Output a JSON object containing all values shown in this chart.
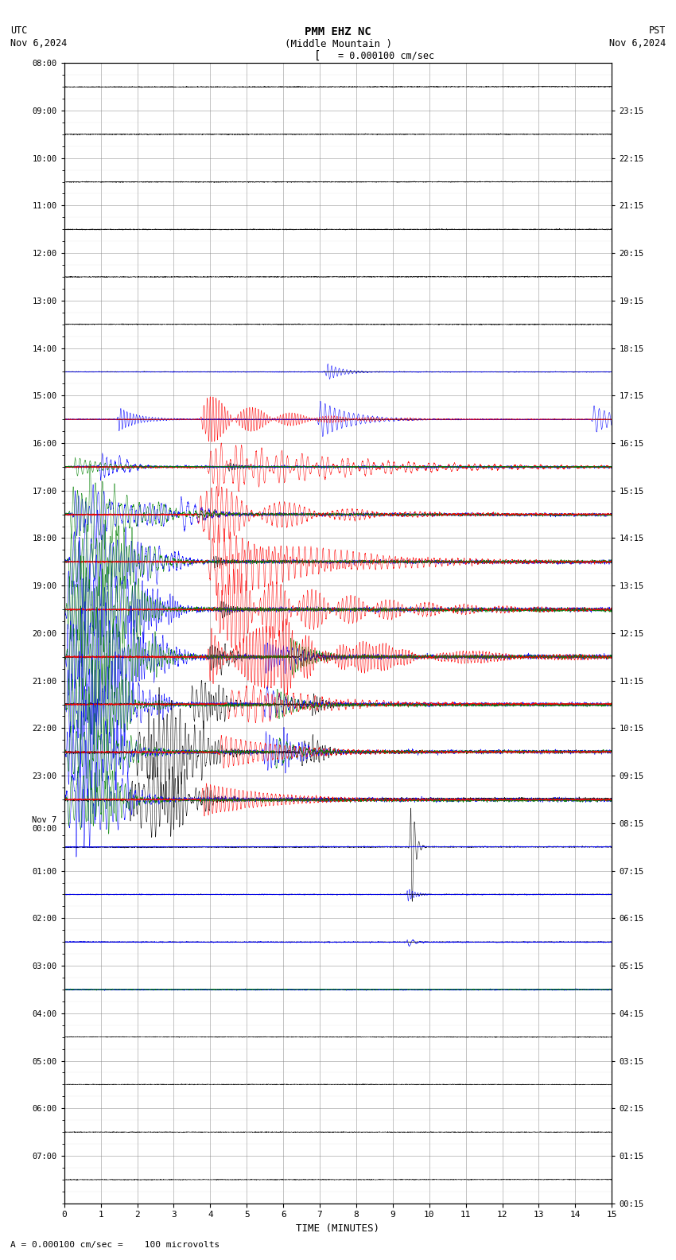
{
  "title_line1": "PMM EHZ NC",
  "title_line2": "(Middle Mountain )",
  "scale_label": "= 0.000100 cm/sec",
  "utc_label": "UTC\nNov 6,2024",
  "pst_label": "PST\nNov 6,2024",
  "bottom_label": "A = 0.000100 cm/sec =    100 microvolts",
  "xlabel": "TIME (MINUTES)",
  "x_min": 0,
  "x_max": 15,
  "row_labels_left": [
    "08:00",
    "09:00",
    "10:00",
    "11:00",
    "12:00",
    "13:00",
    "14:00",
    "15:00",
    "16:00",
    "17:00",
    "18:00",
    "19:00",
    "20:00",
    "21:00",
    "22:00",
    "23:00",
    "Nov 7\n00:00",
    "01:00",
    "02:00",
    "03:00",
    "04:00",
    "05:00",
    "06:00",
    "07:00"
  ],
  "row_labels_right": [
    "00:15",
    "01:15",
    "02:15",
    "03:15",
    "04:15",
    "05:15",
    "06:15",
    "07:15",
    "08:15",
    "09:15",
    "10:15",
    "11:15",
    "12:15",
    "13:15",
    "14:15",
    "15:15",
    "16:15",
    "17:15",
    "18:15",
    "19:15",
    "20:15",
    "21:15",
    "22:15",
    "23:15"
  ],
  "bg_color": "#ffffff",
  "grid_color": "#888888",
  "fig_width": 8.5,
  "fig_height": 15.84,
  "minor_grid_color": "#bbbbbb"
}
